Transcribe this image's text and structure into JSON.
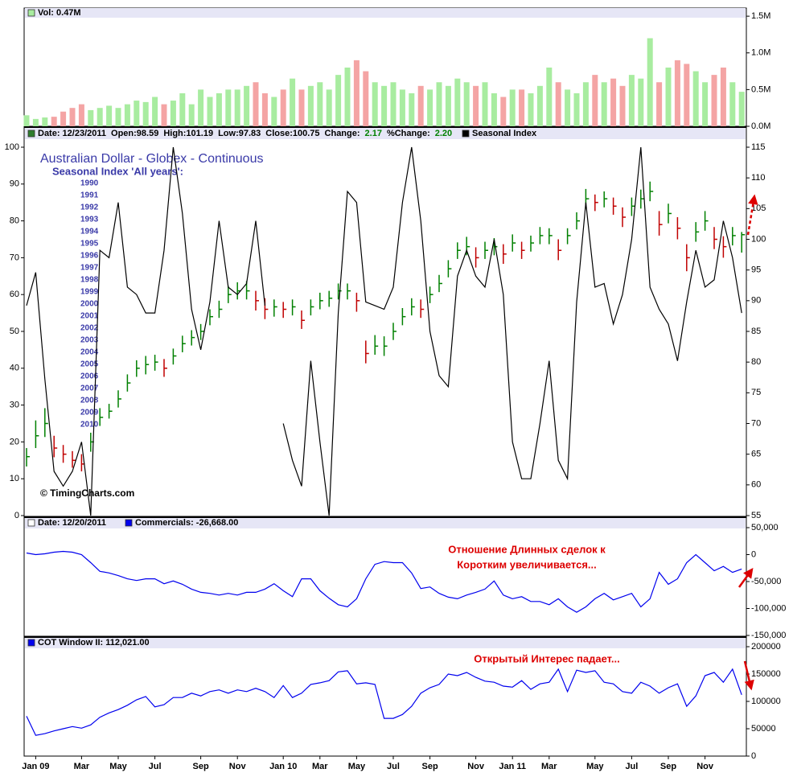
{
  "chart_data": [
    {
      "type": "bar",
      "title": "Vol: 0.47M",
      "values": [
        0.15,
        0.1,
        0.12,
        0.13,
        0.2,
        0.25,
        0.3,
        0.22,
        0.25,
        0.28,
        0.25,
        0.3,
        0.35,
        0.33,
        0.4,
        0.3,
        0.35,
        0.45,
        0.3,
        0.5,
        0.4,
        0.45,
        0.5,
        0.5,
        0.55,
        0.6,
        0.45,
        0.4,
        0.5,
        0.65,
        0.5,
        0.55,
        0.6,
        0.5,
        0.7,
        0.8,
        0.9,
        0.75,
        0.6,
        0.55,
        0.6,
        0.5,
        0.45,
        0.55,
        0.5,
        0.6,
        0.55,
        0.65,
        0.6,
        0.55,
        0.6,
        0.45,
        0.4,
        0.5,
        0.5,
        0.45,
        0.55,
        0.8,
        0.6,
        0.5,
        0.45,
        0.6,
        0.7,
        0.6,
        0.65,
        0.55,
        0.7,
        0.65,
        1.2,
        0.6,
        0.8,
        0.9,
        0.85,
        0.75,
        0.6,
        0.7,
        0.8,
        0.6,
        0.47
      ],
      "up_color": "#a8eca0",
      "down_color": "#f4a4a4",
      "ylim": [
        0,
        1.6
      ],
      "yticks": [
        {
          "value": 0,
          "label": "0.0M"
        },
        {
          "value": 0.5,
          "label": "0.5M"
        },
        {
          "value": 1,
          "label": "1.0M"
        },
        {
          "value": 1.5,
          "label": "1.5M"
        }
      ]
    },
    {
      "type": "ohlc",
      "header": [
        {
          "text": "Date: 12/23/2011"
        },
        {
          "text": "Open:98.59"
        },
        {
          "text": "High:101.19"
        },
        {
          "text": "Low:97.83"
        },
        {
          "text": "Close:100.75"
        },
        {
          "text": "Change:"
        },
        {
          "text": "2.17",
          "color": "#008000"
        },
        {
          "text": "%Change:"
        },
        {
          "text": "2.20",
          "color": "#008000"
        }
      ],
      "title": "Australian Dollar - Globex - Continuous",
      "subtitle": "Seasonal Index 'All years':",
      "years": [
        "1990",
        "1991",
        "1992",
        "1993",
        "1994",
        "1995",
        "1996",
        "1997",
        "1998",
        "1999",
        "2000",
        "2001",
        "2002",
        "2003",
        "2004",
        "2005",
        "2006",
        "2007",
        "2008",
        "2009",
        "2010"
      ],
      "credit": "© TimingCharts.com",
      "high": [
        66,
        70.5,
        72.5,
        68,
        66.5,
        65.5,
        65,
        68.5,
        72.5,
        73.2,
        75.4,
        78,
        80.3,
        81,
        81.2,
        80.5,
        82.2,
        84.3,
        85.2,
        86.2,
        88.6,
        90,
        92.4,
        93,
        93.2,
        91.6,
        90.4,
        90.2,
        89.8,
        90.2,
        88.4,
        90.2,
        91.3,
        91.6,
        92.8,
        92.8,
        91.3,
        83.5,
        84.4,
        84.2,
        86.4,
        88.8,
        90.4,
        90.2,
        92.3,
        94.2,
        96.6,
        99.5,
        100.4,
        98.7,
        99.6,
        100.2,
        99.2,
        100.8,
        99.6,
        100.6,
        102,
        101.8,
        100,
        101.8,
        104.4,
        108.2,
        107.3,
        107.8,
        106.8,
        105.2,
        106.8,
        108.1,
        109.4,
        104.6,
        105.8,
        103.6,
        99.2,
        102.8,
        104.6,
        102,
        100.5,
        102,
        101.19
      ],
      "low": [
        63,
        66,
        67.8,
        64.5,
        63.6,
        62.8,
        62.2,
        65.4,
        69.6,
        70.8,
        72.6,
        75.2,
        77.6,
        78,
        78.6,
        77.6,
        79.6,
        81.6,
        82.7,
        83.6,
        86,
        87.2,
        89.6,
        90.2,
        90.2,
        88.4,
        87,
        87.4,
        87.2,
        87.6,
        85.4,
        87.6,
        88.6,
        89,
        90.2,
        90.2,
        88.2,
        79.8,
        81.2,
        81,
        83.6,
        86,
        87.6,
        87.2,
        89.6,
        91.4,
        93.8,
        96.8,
        97.4,
        95.4,
        96.8,
        97.4,
        96,
        98,
        96.8,
        98,
        99.2,
        99.2,
        96.6,
        99.2,
        101.6,
        105,
        104.6,
        105.2,
        104,
        102,
        103.8,
        105,
        106.2,
        100.6,
        102.6,
        100,
        94.8,
        99.6,
        101.4,
        98.4,
        97,
        99,
        97.83
      ],
      "close": [
        64.6,
        68,
        70,
        66,
        65,
        64,
        63.4,
        67,
        71,
        72,
        74,
        76.6,
        79,
        79.6,
        80,
        79,
        81,
        83,
        84,
        85,
        87.4,
        88.6,
        91,
        91.6,
        91.6,
        90,
        88.6,
        89,
        88.6,
        89,
        86.8,
        89,
        90,
        90.4,
        91.6,
        91.6,
        90,
        81.4,
        82.6,
        82.6,
        85,
        87.4,
        89,
        88.6,
        91,
        92.8,
        95.2,
        98.2,
        98.8,
        97,
        98.2,
        98.8,
        97.6,
        99.4,
        98.2,
        99.4,
        100.6,
        100.6,
        98.2,
        100.6,
        103,
        106.6,
        106,
        106.6,
        105.4,
        103.6,
        105.4,
        106.6,
        107.8,
        102.4,
        104.2,
        101.8,
        97,
        101.2,
        103,
        100,
        98.8,
        100.6,
        100.75
      ],
      "up_color": "#008000",
      "down_color": "#c00000",
      "y2lim": [
        55,
        115
      ],
      "y2ticks": [
        55,
        60,
        65,
        70,
        75,
        80,
        85,
        90,
        95,
        100,
        105,
        110,
        115
      ],
      "series": [
        {
          "name": "Seasonal Index",
          "color": "#000000",
          "values": [
            57,
            66,
            37,
            12,
            8,
            12,
            20,
            0,
            72,
            70,
            85,
            62,
            60,
            55,
            55,
            72,
            100,
            82,
            56,
            45,
            58,
            80,
            62,
            60,
            63,
            80,
            57,
            null,
            25,
            15,
            8,
            42,
            20,
            0,
            55,
            88,
            85,
            58,
            57,
            56,
            62,
            85,
            100,
            80,
            50,
            38,
            35,
            65,
            72,
            65,
            62,
            75,
            60,
            20,
            10,
            10,
            25,
            42,
            15,
            10,
            58,
            85,
            62,
            63,
            52,
            60,
            75,
            100,
            62,
            56,
            52,
            42,
            58,
            72,
            62,
            64,
            80,
            70,
            55
          ]
        }
      ],
      "ylim": [
        0,
        100
      ],
      "yticks": [
        0,
        10,
        20,
        30,
        40,
        50,
        60,
        70,
        80,
        90,
        100
      ]
    },
    {
      "type": "line",
      "header": "Date: 12/20/2011",
      "series": [
        {
          "name": "Commercials: -26,668.00",
          "color": "#0000ee",
          "values": [
            3000,
            0,
            1500,
            4500,
            6000,
            4500,
            0,
            -15000,
            -31000,
            -34000,
            -39000,
            -45000,
            -48000,
            -45000,
            -45000,
            -54000,
            -49000,
            -55000,
            -64000,
            -70000,
            -72000,
            -75000,
            -72000,
            -75000,
            -70000,
            -70000,
            -64000,
            -54000,
            -67000,
            -78000,
            -45000,
            -45000,
            -67000,
            -81000,
            -93000,
            -97000,
            -82000,
            -45000,
            -18000,
            -13000,
            -15000,
            -15000,
            -34000,
            -63000,
            -60000,
            -72000,
            -79000,
            -82000,
            -75000,
            -70000,
            -64000,
            -49000,
            -75000,
            -82000,
            -78000,
            -87000,
            -87000,
            -93000,
            -82000,
            -97000,
            -107000,
            -97000,
            -82000,
            -72000,
            -84000,
            -78000,
            -72000,
            -97000,
            -82000,
            -33000,
            -55000,
            -45000,
            -15000,
            0,
            -15000,
            -30000,
            -22000,
            -33000,
            -26668
          ]
        }
      ],
      "ylim": [
        -150000,
        50000
      ],
      "yticks": [
        {
          "value": 50000,
          "label": "50,000"
        },
        0,
        {
          "value": -50000,
          "label": "-50,000"
        },
        {
          "value": -100000,
          "label": "-100,000"
        },
        {
          "value": -150000,
          "label": "-150,000"
        }
      ],
      "annotations": [
        "Отношение Длинных сделок к",
        "Коротким увеличивается..."
      ]
    },
    {
      "type": "line",
      "series": [
        {
          "name": "COT Window II: 112,021.00",
          "color": "#0000ee",
          "values": [
            73000,
            38000,
            41000,
            46000,
            50000,
            54000,
            51000,
            57000,
            71000,
            79000,
            85000,
            93000,
            103000,
            109000,
            90000,
            94000,
            107000,
            107000,
            115000,
            110000,
            118000,
            121000,
            115000,
            121000,
            118000,
            124000,
            118000,
            107000,
            129000,
            107000,
            115000,
            131000,
            134000,
            138000,
            154000,
            156000,
            132000,
            134000,
            131000,
            69000,
            69000,
            76000,
            91000,
            115000,
            125000,
            131000,
            150000,
            147000,
            153000,
            144000,
            137000,
            135000,
            128000,
            126000,
            138000,
            122000,
            132000,
            135000,
            159000,
            118000,
            157000,
            153000,
            156000,
            135000,
            132000,
            118000,
            115000,
            135000,
            128000,
            115000,
            125000,
            132000,
            91000,
            110000,
            147000,
            153000,
            135000,
            159000,
            112021
          ]
        }
      ],
      "ylim": [
        0,
        200000
      ],
      "yticks": [
        0,
        50000,
        100000,
        150000,
        200000
      ],
      "categories": [
        null,
        "Jan 09",
        null,
        null,
        null,
        null,
        "Mar",
        null,
        null,
        null,
        "May",
        null,
        null,
        null,
        "Jul",
        null,
        null,
        null,
        null,
        "Sep",
        null,
        null,
        null,
        "Nov",
        null,
        null,
        null,
        null,
        "Jan 10",
        null,
        null,
        null,
        "Mar",
        null,
        null,
        null,
        "May",
        null,
        null,
        null,
        "Jul",
        null,
        null,
        null,
        "Sep",
        null,
        null,
        null,
        null,
        "Nov",
        null,
        null,
        null,
        "Jan 11",
        null,
        null,
        null,
        "Mar",
        null,
        null,
        null,
        null,
        "May",
        null,
        null,
        null,
        "Jul",
        null,
        null,
        null,
        "Sep",
        null,
        null,
        null,
        "Nov",
        null,
        null,
        null,
        null
      ],
      "annotations": [
        "Открытый Интерес падает..."
      ]
    }
  ]
}
